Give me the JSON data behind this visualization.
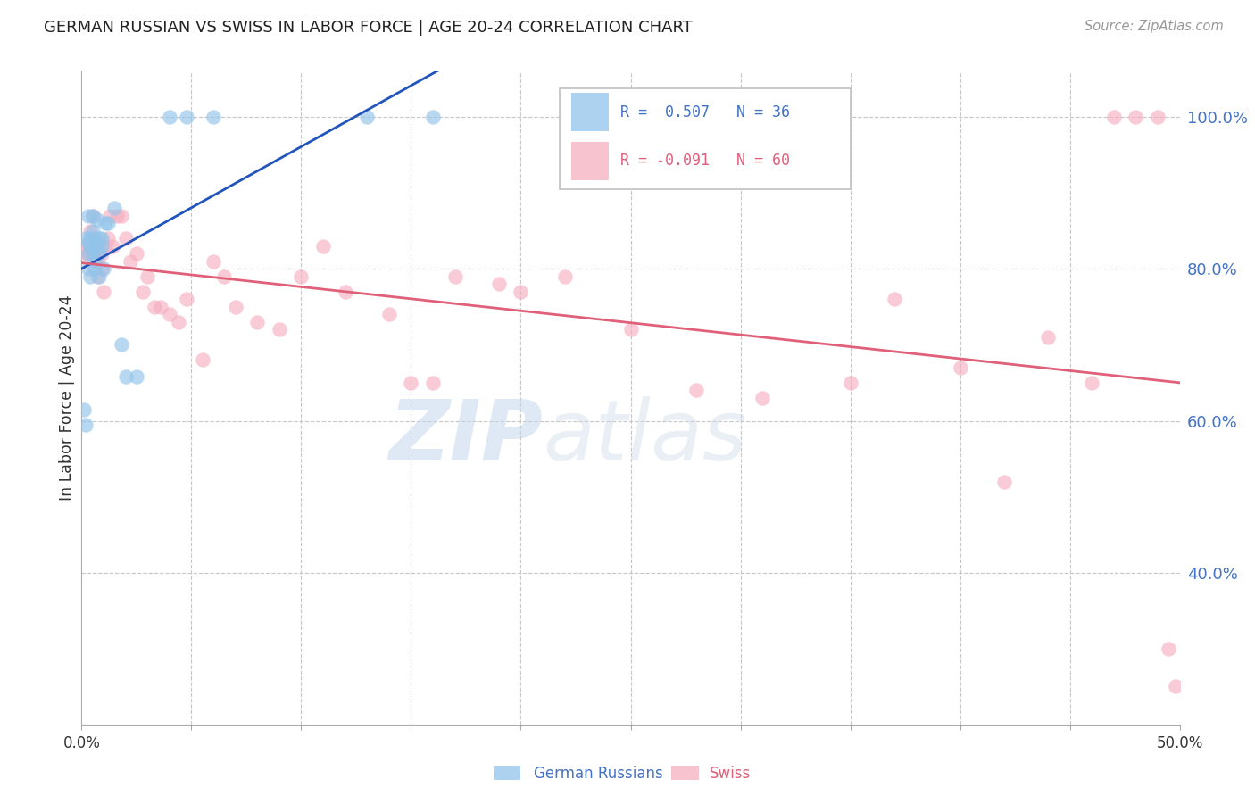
{
  "title": "GERMAN RUSSIAN VS SWISS IN LABOR FORCE | AGE 20-24 CORRELATION CHART",
  "source": "Source: ZipAtlas.com",
  "ylabel": "In Labor Force | Age 20-24",
  "xlim": [
    0.0,
    0.5
  ],
  "ylim": [
    0.2,
    1.06
  ],
  "xtick_positions": [
    0.0,
    0.05,
    0.1,
    0.15,
    0.2,
    0.25,
    0.3,
    0.35,
    0.4,
    0.45,
    0.5
  ],
  "xtick_labels_shown": {
    "0.0": "0.0%",
    "0.50": "50.0%"
  },
  "yticks_right": [
    0.4,
    0.6,
    0.8,
    1.0
  ],
  "ytick_right_labels": [
    "40.0%",
    "60.0%",
    "80.0%",
    "100.0%"
  ],
  "blue_scatter_color": "#92c4ea",
  "pink_scatter_color": "#f5afc0",
  "blue_line_color": "#2255bb",
  "pink_line_color": "#e0607a",
  "blue_R": "0.507",
  "blue_N": "36",
  "pink_R": "-0.091",
  "pink_N": "60",
  "german_russian_x": [
    0.001,
    0.002,
    0.002,
    0.003,
    0.003,
    0.003,
    0.003,
    0.004,
    0.004,
    0.004,
    0.005,
    0.005,
    0.005,
    0.005,
    0.006,
    0.006,
    0.006,
    0.007,
    0.007,
    0.008,
    0.008,
    0.008,
    0.009,
    0.009,
    0.01,
    0.011,
    0.012,
    0.015,
    0.018,
    0.02,
    0.025,
    0.04,
    0.048,
    0.06,
    0.13,
    0.16
  ],
  "german_russian_y": [
    0.615,
    0.595,
    0.84,
    0.87,
    0.835,
    0.82,
    0.8,
    0.79,
    0.83,
    0.84,
    0.84,
    0.85,
    0.87,
    0.82,
    0.8,
    0.81,
    0.835,
    0.83,
    0.865,
    0.79,
    0.82,
    0.84,
    0.84,
    0.83,
    0.8,
    0.86,
    0.86,
    0.88,
    0.7,
    0.658,
    0.658,
    1.0,
    1.0,
    1.0,
    1.0,
    1.0
  ],
  "swiss_x": [
    0.001,
    0.002,
    0.003,
    0.004,
    0.005,
    0.005,
    0.006,
    0.006,
    0.007,
    0.007,
    0.008,
    0.009,
    0.009,
    0.01,
    0.011,
    0.012,
    0.013,
    0.014,
    0.016,
    0.018,
    0.02,
    0.022,
    0.025,
    0.028,
    0.03,
    0.033,
    0.036,
    0.04,
    0.044,
    0.048,
    0.055,
    0.06,
    0.065,
    0.07,
    0.08,
    0.09,
    0.1,
    0.11,
    0.12,
    0.14,
    0.15,
    0.16,
    0.17,
    0.19,
    0.2,
    0.22,
    0.25,
    0.28,
    0.31,
    0.35,
    0.37,
    0.4,
    0.42,
    0.44,
    0.46,
    0.47,
    0.48,
    0.49,
    0.495,
    0.498
  ],
  "swiss_y": [
    0.83,
    0.82,
    0.82,
    0.85,
    0.87,
    0.82,
    0.82,
    0.84,
    0.79,
    0.81,
    0.83,
    0.82,
    0.8,
    0.77,
    0.83,
    0.84,
    0.87,
    0.83,
    0.87,
    0.87,
    0.84,
    0.81,
    0.82,
    0.77,
    0.79,
    0.75,
    0.75,
    0.74,
    0.73,
    0.76,
    0.68,
    0.81,
    0.79,
    0.75,
    0.73,
    0.72,
    0.79,
    0.83,
    0.77,
    0.74,
    0.65,
    0.65,
    0.79,
    0.78,
    0.77,
    0.79,
    0.72,
    0.64,
    0.63,
    0.65,
    0.76,
    0.67,
    0.52,
    0.71,
    0.65,
    1.0,
    1.0,
    1.0,
    0.3,
    0.25
  ],
  "watermark_zip_color": "#c8ddf0",
  "watermark_atlas_color": "#d0ddf0",
  "background_color": "#ffffff"
}
